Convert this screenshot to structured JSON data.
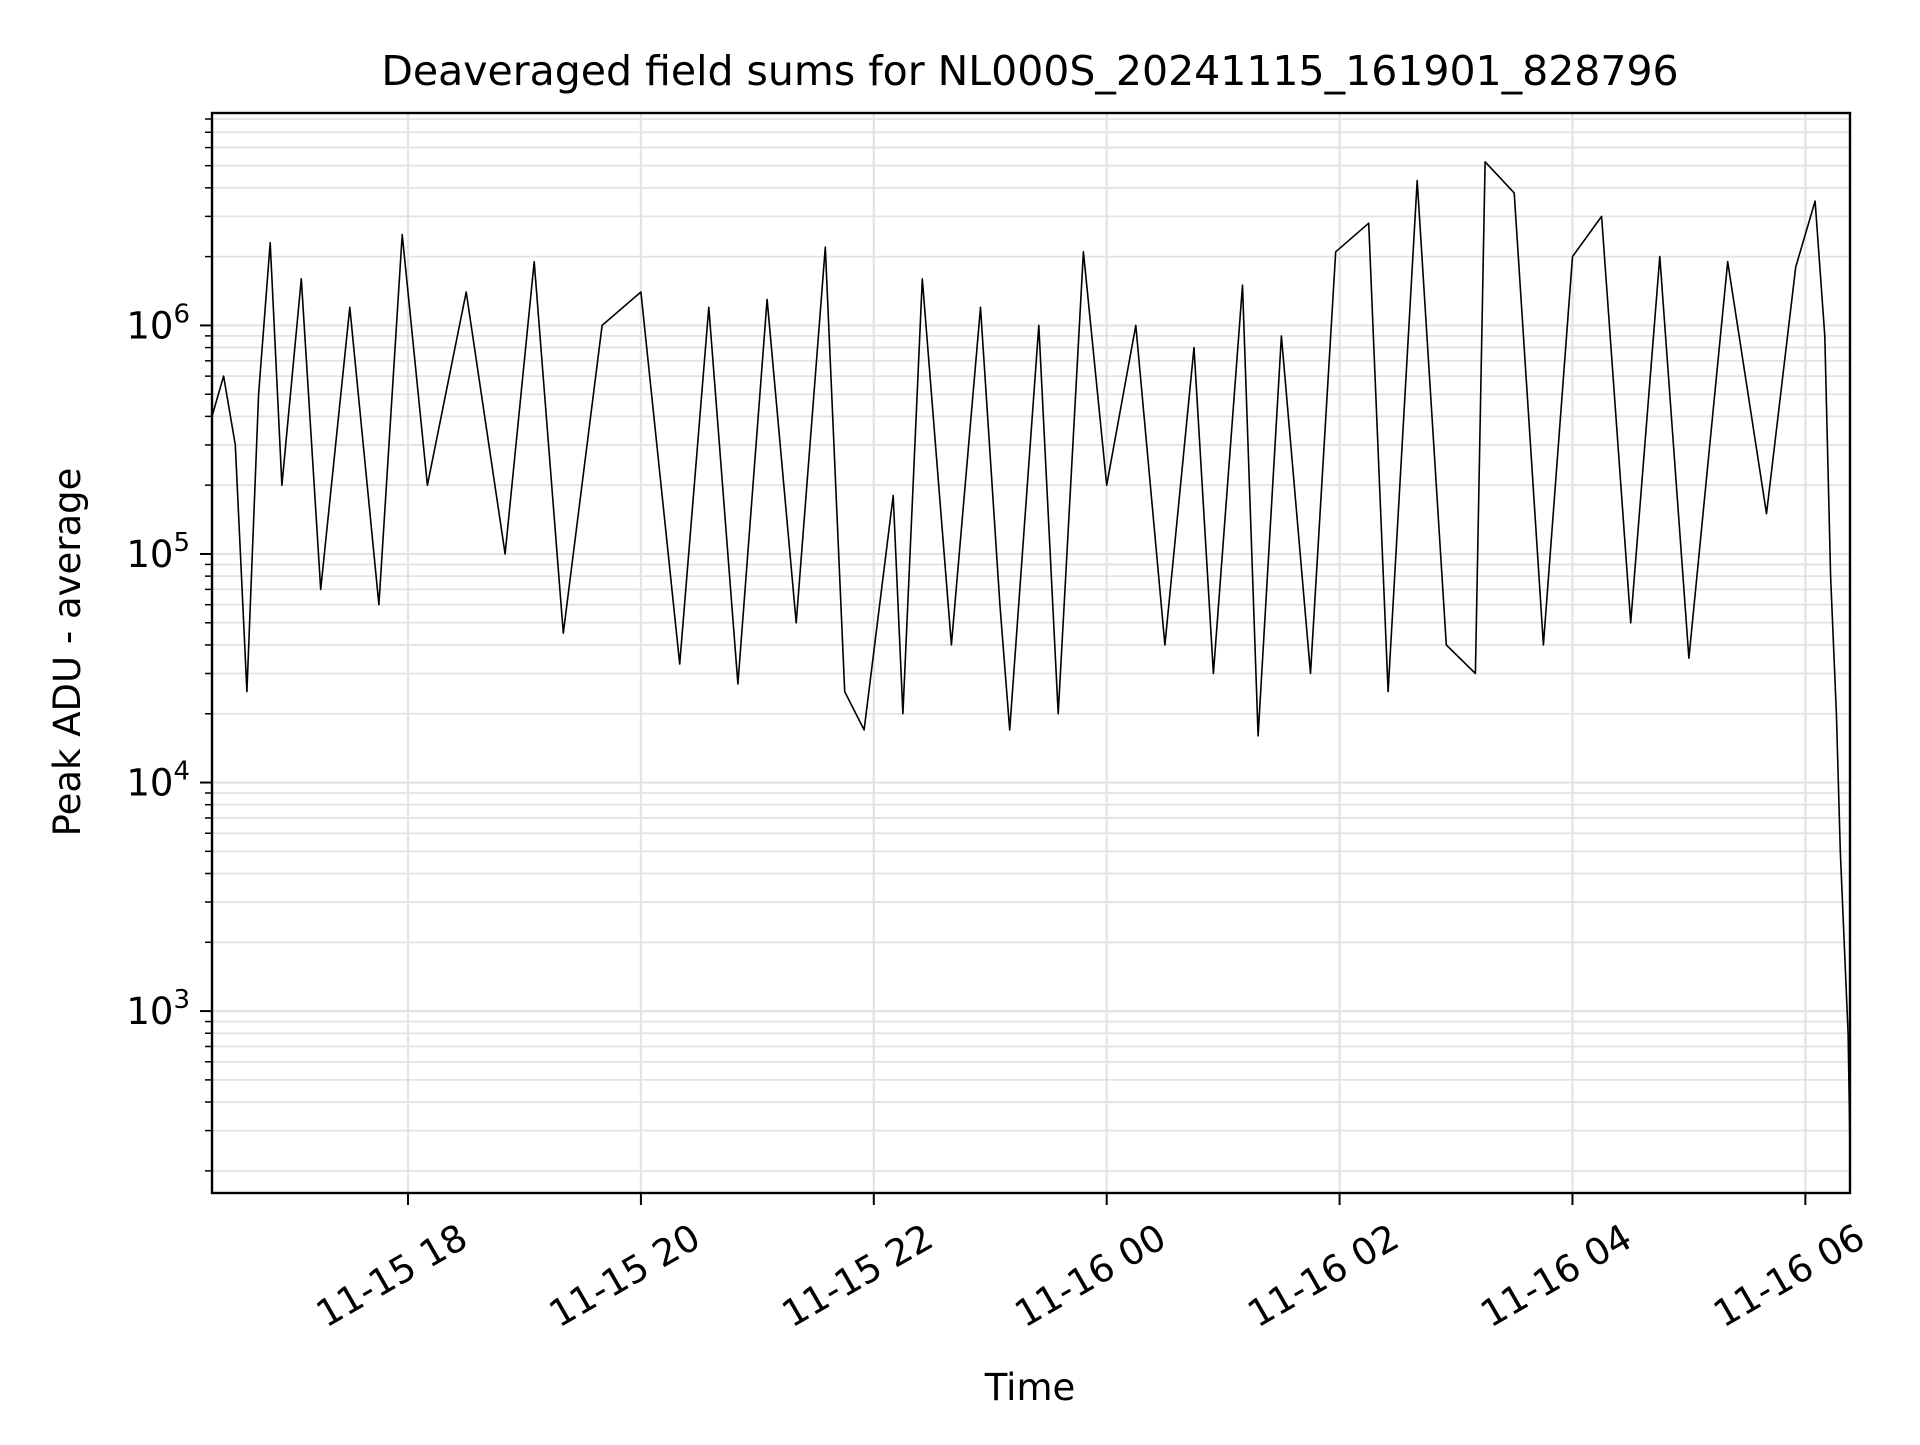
{
  "chart_data": {
    "type": "line",
    "title": "Deaveraged field sums for NL000S_20241115_161901_828796",
    "xlabel": "Time",
    "ylabel": "Peak ADU - average",
    "xscale": "time",
    "yscale": "log",
    "xlim": [
      "2024-11-15 16:19",
      "2024-11-16 06:23"
    ],
    "ylim": [
      160,
      8500000
    ],
    "grid": true,
    "legend": "none",
    "line_color": "#000000",
    "x_ticks": [
      {
        "value": "2024-11-15 18:00",
        "label": "11-15 18"
      },
      {
        "value": "2024-11-15 20:00",
        "label": "11-15 20"
      },
      {
        "value": "2024-11-15 22:00",
        "label": "11-15 22"
      },
      {
        "value": "2024-11-16 00:00",
        "label": "11-16 00"
      },
      {
        "value": "2024-11-16 02:00",
        "label": "11-16 02"
      },
      {
        "value": "2024-11-16 04:00",
        "label": "11-16 04"
      },
      {
        "value": "2024-11-16 06:00",
        "label": "11-16 06"
      }
    ],
    "y_ticks": [
      {
        "value": 1000,
        "base": "10",
        "exp": "3"
      },
      {
        "value": 10000,
        "base": "10",
        "exp": "4"
      },
      {
        "value": 100000,
        "base": "10",
        "exp": "5"
      },
      {
        "value": 1000000,
        "base": "10",
        "exp": "6"
      }
    ],
    "series": [
      {
        "points": [
          [
            "2024-11-15 16:19",
            400000
          ],
          [
            "2024-11-15 16:25",
            600000
          ],
          [
            "2024-11-15 16:31",
            300000
          ],
          [
            "2024-11-15 16:37",
            25000
          ],
          [
            "2024-11-15 16:43",
            500000
          ],
          [
            "2024-11-15 16:49",
            2300000
          ],
          [
            "2024-11-15 16:55",
            200000
          ],
          [
            "2024-11-15 17:05",
            1600000
          ],
          [
            "2024-11-15 17:15",
            70000
          ],
          [
            "2024-11-15 17:30",
            1200000
          ],
          [
            "2024-11-15 17:45",
            60000
          ],
          [
            "2024-11-15 17:57",
            2500000
          ],
          [
            "2024-11-15 18:10",
            200000
          ],
          [
            "2024-11-15 18:30",
            1400000
          ],
          [
            "2024-11-15 18:50",
            100000
          ],
          [
            "2024-11-15 19:05",
            1900000
          ],
          [
            "2024-11-15 19:20",
            45000
          ],
          [
            "2024-11-15 19:40",
            1000000
          ],
          [
            "2024-11-15 20:00",
            1400000
          ],
          [
            "2024-11-15 20:20",
            33000
          ],
          [
            "2024-11-15 20:35",
            1200000
          ],
          [
            "2024-11-15 20:50",
            27000
          ],
          [
            "2024-11-15 21:05",
            1300000
          ],
          [
            "2024-11-15 21:20",
            50000
          ],
          [
            "2024-11-15 21:35",
            2200000
          ],
          [
            "2024-11-15 21:45",
            25000
          ],
          [
            "2024-11-15 21:55",
            17000
          ],
          [
            "2024-11-15 22:10",
            180000
          ],
          [
            "2024-11-15 22:15",
            20000
          ],
          [
            "2024-11-15 22:25",
            1600000
          ],
          [
            "2024-11-15 22:40",
            40000
          ],
          [
            "2024-11-15 22:55",
            1200000
          ],
          [
            "2024-11-15 23:05",
            60000
          ],
          [
            "2024-11-15 23:10",
            17000
          ],
          [
            "2024-11-15 23:25",
            1000000
          ],
          [
            "2024-11-15 23:35",
            20000
          ],
          [
            "2024-11-15 23:48",
            2100000
          ],
          [
            "2024-11-16 00:00",
            200000
          ],
          [
            "2024-11-16 00:15",
            1000000
          ],
          [
            "2024-11-16 00:30",
            40000
          ],
          [
            "2024-11-16 00:45",
            800000
          ],
          [
            "2024-11-16 00:55",
            30000
          ],
          [
            "2024-11-16 01:10",
            1500000
          ],
          [
            "2024-11-16 01:18",
            16000
          ],
          [
            "2024-11-16 01:30",
            900000
          ],
          [
            "2024-11-16 01:45",
            30000
          ],
          [
            "2024-11-16 01:58",
            2100000
          ],
          [
            "2024-11-16 02:15",
            2800000
          ],
          [
            "2024-11-16 02:25",
            25000
          ],
          [
            "2024-11-16 02:40",
            4300000
          ],
          [
            "2024-11-16 02:55",
            40000
          ],
          [
            "2024-11-16 03:10",
            30000
          ],
          [
            "2024-11-16 03:15",
            5200000
          ],
          [
            "2024-11-16 03:30",
            3800000
          ],
          [
            "2024-11-16 03:45",
            40000
          ],
          [
            "2024-11-16 04:00",
            2000000
          ],
          [
            "2024-11-16 04:15",
            3000000
          ],
          [
            "2024-11-16 04:30",
            50000
          ],
          [
            "2024-11-16 04:45",
            2000000
          ],
          [
            "2024-11-16 05:00",
            35000
          ],
          [
            "2024-11-16 05:20",
            1900000
          ],
          [
            "2024-11-16 05:40",
            150000
          ],
          [
            "2024-11-16 05:55",
            1800000
          ],
          [
            "2024-11-16 06:05",
            3500000
          ],
          [
            "2024-11-16 06:10",
            900000
          ],
          [
            "2024-11-16 06:13",
            80000
          ],
          [
            "2024-11-16 06:16",
            20000
          ],
          [
            "2024-11-16 06:18",
            5000
          ],
          [
            "2024-11-16 06:20",
            2000
          ],
          [
            "2024-11-16 06:22",
            800
          ],
          [
            "2024-11-16 06:23",
            250
          ]
        ]
      }
    ]
  }
}
